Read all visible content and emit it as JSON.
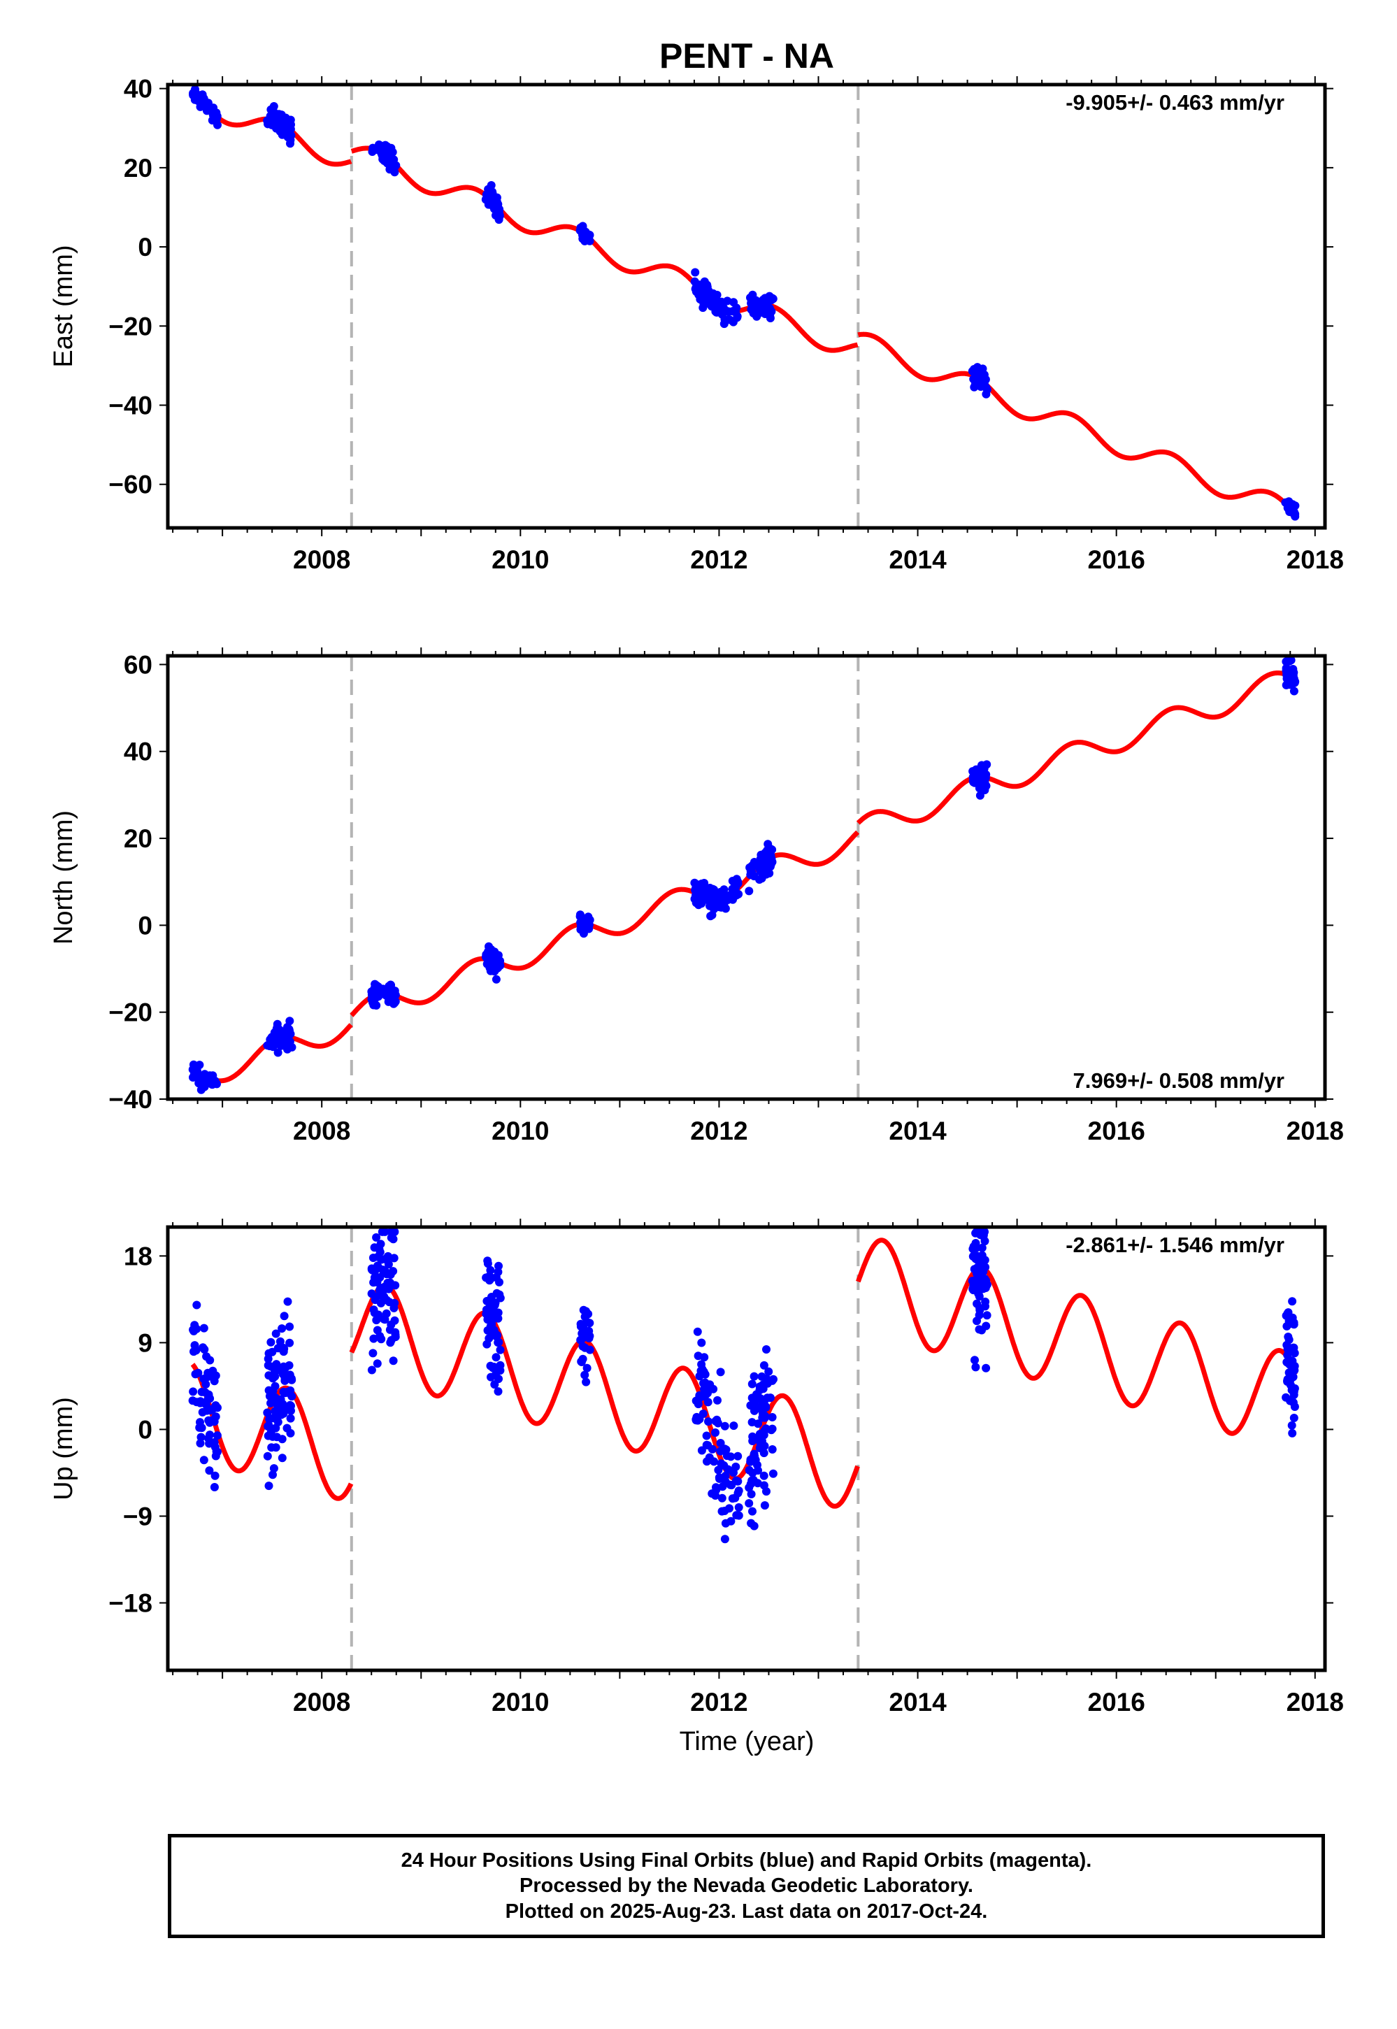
{
  "chart_data": {
    "title": "PENT - NA",
    "xlabel": "Time (year)",
    "x_ticks": [
      2008,
      2010,
      2012,
      2014,
      2016,
      2018
    ],
    "xlim": [
      2006.45,
      2018.1
    ],
    "offset_lines": [
      2008.3,
      2013.4
    ],
    "colors": {
      "data": "#0000ff",
      "model": "#ff0000",
      "offset_line": "#b4b4b4"
    },
    "panels": [
      {
        "type": "scatter",
        "ylabel": "East (mm)",
        "ylim": [
          -71,
          41
        ],
        "y_ticks": [
          40,
          20,
          0,
          -20,
          -40,
          -60
        ],
        "velocity": "-9.905+/- 0.463 mm/yr",
        "velocity_pos": "top-right",
        "model": {
          "a": 37.5,
          "slope": -9.905,
          "amp": 2.8,
          "phase": 0.3,
          "steps": [
            [
              2008.3,
              2.5
            ],
            [
              2013.4,
              2.5
            ]
          ]
        },
        "clusters": [
          {
            "t0": 2006.7,
            "t1": 2006.95,
            "count": 45,
            "spread": 1.5
          },
          {
            "t0": 2007.45,
            "t1": 2007.7,
            "count": 55,
            "spread": 2.0
          },
          {
            "t0": 2008.5,
            "t1": 2008.75,
            "count": 50,
            "spread": 1.5
          },
          {
            "t0": 2009.65,
            "t1": 2009.8,
            "count": 40,
            "spread": 2.0
          },
          {
            "t0": 2010.6,
            "t1": 2010.7,
            "count": 25,
            "spread": 1.0
          },
          {
            "t0": 2011.75,
            "t1": 2012.2,
            "count": 80,
            "spread": 2.0
          },
          {
            "t0": 2012.3,
            "t1": 2012.55,
            "count": 50,
            "spread": 2.0
          },
          {
            "t0": 2014.55,
            "t1": 2014.7,
            "count": 40,
            "spread": 2.0
          },
          {
            "t0": 2017.7,
            "t1": 2017.8,
            "count": 30,
            "spread": 1.0
          }
        ]
      },
      {
        "type": "scatter",
        "ylabel": "North (mm)",
        "ylim": [
          -40,
          62
        ],
        "y_ticks": [
          60,
          40,
          20,
          0,
          -20,
          -40
        ],
        "velocity": "7.969+/- 0.508 mm/yr",
        "velocity_pos": "bottom-right",
        "model": {
          "a": -35.5,
          "slope": 7.969,
          "amp": 2.8,
          "phase": 0.3,
          "steps": [
            [
              2008.3,
              2.0
            ],
            [
              2013.4,
              2.0
            ]
          ]
        },
        "clusters": [
          {
            "t0": 2006.7,
            "t1": 2006.95,
            "count": 40,
            "spread": 1.5
          },
          {
            "t0": 2007.45,
            "t1": 2007.7,
            "count": 50,
            "spread": 2.0
          },
          {
            "t0": 2008.5,
            "t1": 2008.75,
            "count": 50,
            "spread": 1.5
          },
          {
            "t0": 2009.65,
            "t1": 2009.8,
            "count": 40,
            "spread": 2.0
          },
          {
            "t0": 2010.6,
            "t1": 2010.7,
            "count": 25,
            "spread": 1.5
          },
          {
            "t0": 2011.75,
            "t1": 2012.2,
            "count": 80,
            "spread": 2.0
          },
          {
            "t0": 2012.3,
            "t1": 2012.55,
            "count": 50,
            "spread": 2.0
          },
          {
            "t0": 2014.55,
            "t1": 2014.7,
            "count": 40,
            "spread": 2.0
          },
          {
            "t0": 2017.7,
            "t1": 2017.8,
            "count": 30,
            "spread": 2.0
          }
        ]
      },
      {
        "type": "scatter",
        "ylabel": "Up (mm)",
        "ylim": [
          -25,
          21
        ],
        "y_ticks": [
          18,
          9,
          0,
          -9,
          -18
        ],
        "velocity": "-2.861+/- 1.546 mm/yr",
        "velocity_pos": "top-right",
        "model": {
          "a": 2.0,
          "slope": -2.861,
          "amp": 5.0,
          "phase": 0.4,
          "steps": [
            [
              2008.3,
              13.5
            ],
            [
              2013.4,
              19.0
            ]
          ]
        },
        "clusters": [
          {
            "t0": 2006.7,
            "t1": 2006.95,
            "count": 70,
            "spread": 4.5
          },
          {
            "t0": 2007.45,
            "t1": 2007.7,
            "count": 90,
            "spread": 4.5
          },
          {
            "t0": 2008.5,
            "t1": 2008.75,
            "count": 80,
            "spread": 4.5
          },
          {
            "t0": 2009.65,
            "t1": 2009.8,
            "count": 60,
            "spread": 4.0
          },
          {
            "t0": 2010.6,
            "t1": 2010.7,
            "count": 30,
            "spread": 2.5
          },
          {
            "t0": 2011.75,
            "t1": 2012.2,
            "count": 90,
            "spread": 4.5
          },
          {
            "t0": 2012.3,
            "t1": 2012.55,
            "count": 80,
            "spread": 5.0
          },
          {
            "t0": 2014.55,
            "t1": 2014.7,
            "count": 70,
            "spread": 5.0
          },
          {
            "t0": 2017.7,
            "t1": 2017.8,
            "count": 50,
            "spread": 3.5
          }
        ]
      }
    ]
  },
  "footer": {
    "line1": "24 Hour Positions Using Final Orbits (blue) and Rapid Orbits (magenta).",
    "line2": "Processed by the Nevada Geodetic Laboratory.",
    "line3": "Plotted on 2025-Aug-23. Last data on 2017-Oct-24."
  }
}
